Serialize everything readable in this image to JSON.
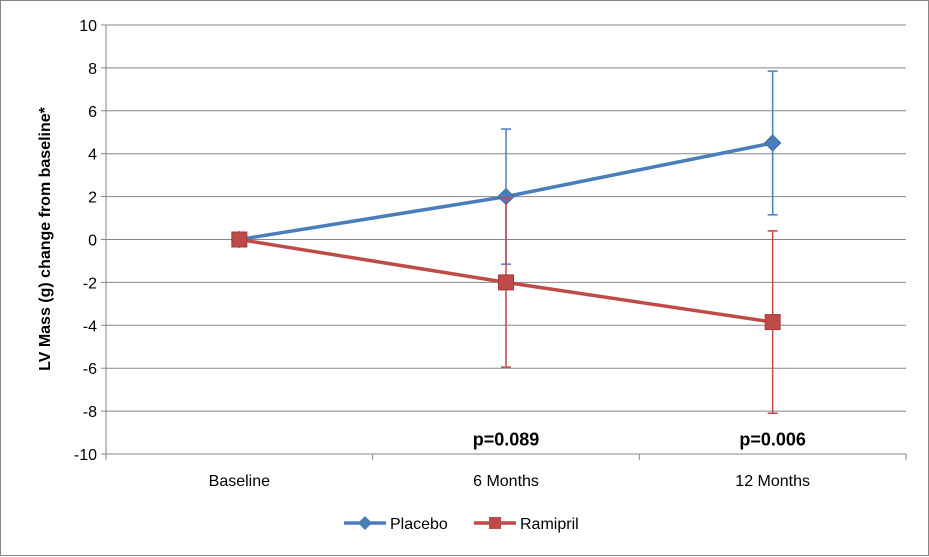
{
  "chart_data": {
    "type": "line",
    "categories": [
      "Baseline",
      "6 Months",
      "12 Months"
    ],
    "ylabel": "LV Mass (g) change from baseline*",
    "xlabel": "",
    "ylim": [
      -10,
      10
    ],
    "yticks": [
      -10,
      -8,
      -6,
      -4,
      -2,
      0,
      2,
      4,
      6,
      8,
      10
    ],
    "grid": true,
    "legend_position": "bottom",
    "series": [
      {
        "name": "Placebo",
        "values": [
          0,
          2.0,
          4.5
        ],
        "error_low": [
          null,
          -1.15,
          1.15
        ],
        "error_high": [
          null,
          5.15,
          7.85
        ],
        "color": "#4a7ebb",
        "marker": "diamond"
      },
      {
        "name": "Ramipril",
        "values": [
          0,
          -2.0,
          -3.85
        ],
        "error_low": [
          null,
          -5.95,
          -8.1
        ],
        "error_high": [
          null,
          1.95,
          0.4
        ],
        "color": "#be4b48",
        "marker": "square"
      }
    ],
    "annotations": [
      {
        "text": "p=0.089",
        "category": "6 Months",
        "y": -9.6
      },
      {
        "text": "p=0.006",
        "category": "12 Months",
        "y": -9.6
      }
    ]
  }
}
